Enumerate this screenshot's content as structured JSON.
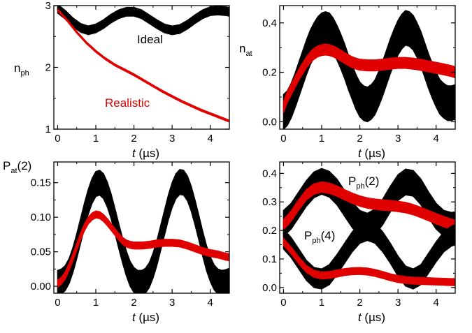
{
  "chart_data": [
    {
      "id": "nph",
      "type": "line",
      "xlabel_italic": "t",
      "xlabel_unit": "(µs)",
      "ylabel_main": "n",
      "ylabel_sub": "ph",
      "xlim": [
        -0.1,
        4.5
      ],
      "ylim": [
        1,
        3
      ],
      "xticks": [
        0,
        1,
        2,
        3,
        4
      ],
      "yticks": [
        1,
        2,
        3
      ],
      "annotations": [
        {
          "text": "Ideal",
          "color": "#000000"
        },
        {
          "text": "Realistic",
          "color": "#e00000"
        }
      ],
      "series": [
        {
          "name": "Ideal",
          "color": "#000000",
          "band": 0.07,
          "x": [
            0,
            0.2,
            0.4,
            0.6,
            0.8,
            1.0,
            1.2,
            1.4,
            1.6,
            1.8,
            2.0,
            2.2,
            2.4,
            2.6,
            2.8,
            3.0,
            3.2,
            3.4,
            3.6,
            3.8,
            4.0,
            4.2,
            4.4,
            4.5
          ],
          "y": [
            2.95,
            2.85,
            2.73,
            2.64,
            2.6,
            2.63,
            2.7,
            2.79,
            2.86,
            2.9,
            2.9,
            2.86,
            2.78,
            2.7,
            2.63,
            2.6,
            2.62,
            2.69,
            2.78,
            2.86,
            2.91,
            2.92,
            2.91,
            2.9
          ]
        },
        {
          "name": "Realistic",
          "color": "#e00000",
          "band": 0.015,
          "x": [
            0,
            0.25,
            0.5,
            0.75,
            1.0,
            1.25,
            1.5,
            1.75,
            2.0,
            2.25,
            2.5,
            2.75,
            3.0,
            3.25,
            3.5,
            3.75,
            4.0,
            4.25,
            4.5
          ],
          "y": [
            2.93,
            2.76,
            2.57,
            2.4,
            2.26,
            2.14,
            2.04,
            1.96,
            1.88,
            1.79,
            1.7,
            1.61,
            1.53,
            1.45,
            1.38,
            1.31,
            1.25,
            1.19,
            1.13
          ]
        }
      ]
    },
    {
      "id": "nat",
      "type": "line",
      "xlabel_italic": "t",
      "xlabel_unit": "(µs)",
      "ylabel_main": "n",
      "ylabel_sub": "at",
      "xlim": [
        -0.1,
        4.5
      ],
      "ylim": [
        -0.03,
        0.47
      ],
      "xticks": [
        0,
        1,
        2,
        3,
        4
      ],
      "yticks": [
        0.0,
        0.2,
        0.4
      ],
      "yticklabels": [
        "0.0",
        "0.2",
        "0.4"
      ],
      "annotations": [],
      "series": [
        {
          "name": "ideal",
          "color": "#000000",
          "band": 0.07,
          "x": [
            0,
            0.1,
            0.2,
            0.3,
            0.4,
            0.5,
            0.6,
            0.7,
            0.8,
            0.9,
            1.0,
            1.1,
            1.2,
            1.3,
            1.4,
            1.5,
            1.6,
            1.7,
            1.8,
            1.9,
            2.0,
            2.1,
            2.2,
            2.3,
            2.4,
            2.5,
            2.6,
            2.7,
            2.8,
            2.9,
            3.0,
            3.1,
            3.2,
            3.3,
            3.4,
            3.5,
            3.6,
            3.7,
            3.8,
            3.9,
            4.0,
            4.1,
            4.2,
            4.3,
            4.4,
            4.5
          ],
          "y": [
            0.04,
            0.055,
            0.085,
            0.125,
            0.17,
            0.215,
            0.26,
            0.3,
            0.33,
            0.355,
            0.37,
            0.375,
            0.37,
            0.35,
            0.32,
            0.285,
            0.245,
            0.2,
            0.16,
            0.12,
            0.09,
            0.075,
            0.07,
            0.08,
            0.1,
            0.135,
            0.175,
            0.22,
            0.265,
            0.305,
            0.34,
            0.365,
            0.38,
            0.375,
            0.36,
            0.33,
            0.295,
            0.25,
            0.205,
            0.165,
            0.13,
            0.1,
            0.085,
            0.075,
            0.075,
            0.08
          ]
        },
        {
          "name": "realistic",
          "color": "#e00000",
          "band": 0.022,
          "x": [
            0,
            0.1,
            0.2,
            0.3,
            0.4,
            0.5,
            0.6,
            0.7,
            0.8,
            0.9,
            1.0,
            1.1,
            1.2,
            1.3,
            1.4,
            1.5,
            1.6,
            1.7,
            1.8,
            1.9,
            2.0,
            2.2,
            2.4,
            2.6,
            2.8,
            3.0,
            3.2,
            3.4,
            3.6,
            3.8,
            4.0,
            4.2,
            4.4,
            4.5
          ],
          "y": [
            0.06,
            0.1,
            0.13,
            0.16,
            0.19,
            0.215,
            0.24,
            0.26,
            0.275,
            0.285,
            0.29,
            0.292,
            0.29,
            0.285,
            0.277,
            0.268,
            0.258,
            0.249,
            0.241,
            0.235,
            0.231,
            0.228,
            0.228,
            0.231,
            0.235,
            0.238,
            0.238,
            0.235,
            0.23,
            0.224,
            0.218,
            0.212,
            0.205,
            0.2
          ]
        }
      ]
    },
    {
      "id": "pat2",
      "type": "line",
      "xlabel_italic": "t",
      "xlabel_unit": "(µs)",
      "ylabel_main": "P",
      "ylabel_sub": "at",
      "ylabel_suffix": "(2)",
      "xlim": [
        -0.1,
        4.5
      ],
      "ylim": [
        -0.01,
        0.18
      ],
      "xticks": [
        0,
        1,
        2,
        3,
        4
      ],
      "yticks": [
        0.0,
        0.05,
        0.1,
        0.15
      ],
      "yticklabels": [
        "0.00",
        "0.05",
        "0.10",
        "0.15"
      ],
      "annotations": [],
      "series": [
        {
          "name": "ideal",
          "color": "#000000",
          "band": 0.018,
          "x": [
            0,
            0.1,
            0.2,
            0.3,
            0.4,
            0.5,
            0.6,
            0.7,
            0.8,
            0.9,
            1.0,
            1.1,
            1.2,
            1.3,
            1.4,
            1.5,
            1.6,
            1.7,
            1.8,
            1.9,
            2.0,
            2.1,
            2.2,
            2.3,
            2.4,
            2.5,
            2.6,
            2.7,
            2.8,
            2.9,
            3.0,
            3.1,
            3.2,
            3.3,
            3.4,
            3.5,
            3.6,
            3.7,
            3.8,
            3.9,
            4.0,
            4.1,
            4.2,
            4.3,
            4.4,
            4.5
          ],
          "y": [
            0.005,
            0.007,
            0.012,
            0.022,
            0.038,
            0.058,
            0.08,
            0.102,
            0.122,
            0.138,
            0.148,
            0.15,
            0.145,
            0.133,
            0.116,
            0.095,
            0.073,
            0.052,
            0.033,
            0.018,
            0.009,
            0.005,
            0.005,
            0.008,
            0.016,
            0.03,
            0.048,
            0.07,
            0.092,
            0.114,
            0.132,
            0.145,
            0.151,
            0.15,
            0.142,
            0.127,
            0.107,
            0.085,
            0.062,
            0.041,
            0.025,
            0.013,
            0.007,
            0.005,
            0.006,
            0.008
          ]
        },
        {
          "name": "realistic",
          "color": "#e00000",
          "band": 0.005,
          "x": [
            0,
            0.1,
            0.2,
            0.3,
            0.4,
            0.5,
            0.6,
            0.7,
            0.8,
            0.9,
            1.0,
            1.1,
            1.2,
            1.3,
            1.4,
            1.5,
            1.6,
            1.7,
            1.8,
            1.9,
            2.0,
            2.2,
            2.4,
            2.6,
            2.8,
            3.0,
            3.2,
            3.4,
            3.6,
            3.8,
            4.0,
            4.2,
            4.4,
            4.5
          ],
          "y": [
            0.004,
            0.008,
            0.016,
            0.028,
            0.042,
            0.057,
            0.072,
            0.085,
            0.095,
            0.101,
            0.104,
            0.103,
            0.099,
            0.093,
            0.086,
            0.079,
            0.072,
            0.066,
            0.062,
            0.06,
            0.059,
            0.059,
            0.06,
            0.062,
            0.063,
            0.063,
            0.062,
            0.059,
            0.055,
            0.051,
            0.048,
            0.046,
            0.043,
            0.042
          ]
        }
      ]
    },
    {
      "id": "pph",
      "type": "line",
      "xlabel_italic": "t",
      "xlabel_unit": "(µs)",
      "xlim": [
        -0.1,
        4.5
      ],
      "ylim": [
        -0.02,
        0.44
      ],
      "xticks": [
        0,
        1,
        2,
        3,
        4
      ],
      "yticks": [
        0.0,
        0.1,
        0.2,
        0.3,
        0.4
      ],
      "yticklabels": [
        "0.0",
        "0.1",
        "0.2",
        "0.3",
        "0.4"
      ],
      "annotations": [
        {
          "main": "P",
          "sub": "ph",
          "suffix": "(2)"
        },
        {
          "main": "P",
          "sub": "ph",
          "suffix": "(4)"
        }
      ],
      "series": [
        {
          "name": "P_ph(2) ideal",
          "color": "#000000",
          "band": 0.045,
          "x": [
            0,
            0.2,
            0.4,
            0.6,
            0.8,
            1.0,
            1.2,
            1.4,
            1.6,
            1.8,
            2.0,
            2.2,
            2.4,
            2.6,
            2.8,
            3.0,
            3.2,
            3.4,
            3.6,
            3.8,
            4.0,
            4.2,
            4.4,
            4.5
          ],
          "y": [
            0.225,
            0.25,
            0.29,
            0.33,
            0.36,
            0.372,
            0.362,
            0.335,
            0.295,
            0.255,
            0.225,
            0.215,
            0.23,
            0.265,
            0.31,
            0.35,
            0.37,
            0.365,
            0.335,
            0.29,
            0.25,
            0.225,
            0.218,
            0.22
          ]
        },
        {
          "name": "P_ph(2) realistic",
          "color": "#e00000",
          "band": 0.018,
          "x": [
            0,
            0.2,
            0.4,
            0.6,
            0.8,
            1.0,
            1.2,
            1.4,
            1.6,
            1.8,
            2.0,
            2.2,
            2.4,
            2.6,
            2.8,
            3.0,
            3.2,
            3.4,
            3.6,
            3.8,
            4.0,
            4.2,
            4.4,
            4.5
          ],
          "y": [
            0.22,
            0.25,
            0.29,
            0.325,
            0.345,
            0.352,
            0.348,
            0.338,
            0.325,
            0.313,
            0.303,
            0.296,
            0.292,
            0.289,
            0.287,
            0.284,
            0.28,
            0.273,
            0.263,
            0.252,
            0.241,
            0.231,
            0.222,
            0.218
          ]
        },
        {
          "name": "P_ph(4) ideal",
          "color": "#000000",
          "band": 0.035,
          "x": [
            0,
            0.2,
            0.4,
            0.6,
            0.8,
            1.0,
            1.2,
            1.4,
            1.6,
            1.8,
            2.0,
            2.2,
            2.4,
            2.6,
            2.8,
            3.0,
            3.2,
            3.4,
            3.6,
            3.8,
            4.0,
            4.2,
            4.4,
            4.5
          ],
          "y": [
            0.17,
            0.14,
            0.1,
            0.06,
            0.035,
            0.03,
            0.045,
            0.08,
            0.12,
            0.16,
            0.19,
            0.2,
            0.19,
            0.16,
            0.12,
            0.075,
            0.04,
            0.03,
            0.045,
            0.085,
            0.125,
            0.16,
            0.18,
            0.185
          ]
        },
        {
          "name": "P_ph(4) realistic",
          "color": "#e00000",
          "band": 0.012,
          "x": [
            0,
            0.2,
            0.4,
            0.6,
            0.8,
            1.0,
            1.2,
            1.4,
            1.6,
            1.8,
            2.0,
            2.2,
            2.4,
            2.6,
            2.8,
            3.0,
            3.2,
            3.4,
            3.6,
            3.8,
            4.0,
            4.2,
            4.4,
            4.5
          ],
          "y": [
            0.16,
            0.13,
            0.095,
            0.065,
            0.048,
            0.042,
            0.044,
            0.049,
            0.054,
            0.057,
            0.058,
            0.056,
            0.051,
            0.044,
            0.036,
            0.03,
            0.026,
            0.024,
            0.023,
            0.022,
            0.021,
            0.02,
            0.019,
            0.019
          ]
        }
      ]
    }
  ]
}
